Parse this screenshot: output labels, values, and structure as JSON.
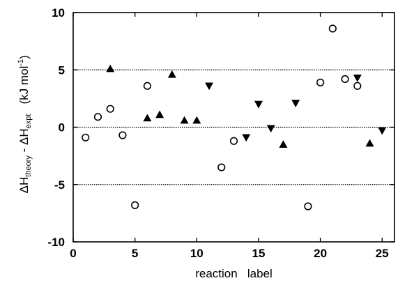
{
  "chart_data": {
    "type": "scatter",
    "xlabel": "reaction   label",
    "ylabel": {
      "delta1": "ΔH",
      "sub1": "theory",
      "minus": " - ΔH",
      "sub2": "expt",
      "unit_open": "   (kJ mol",
      "sup": "-1",
      "unit_close": ")"
    },
    "xlim": [
      0,
      26
    ],
    "ylim": [
      -10,
      10
    ],
    "x_ticks": [
      0,
      5,
      10,
      15,
      20,
      25
    ],
    "y_ticks": [
      -10,
      -5,
      0,
      5,
      10
    ],
    "reference_lines": [
      -5,
      0,
      5
    ],
    "grid": false,
    "series": [
      {
        "marker": "open-circle",
        "points": [
          [
            1,
            -0.9
          ],
          [
            2,
            0.9
          ],
          [
            3,
            1.6
          ],
          [
            4,
            -0.7
          ],
          [
            5,
            -6.8
          ],
          [
            6,
            3.6
          ],
          [
            12,
            -3.5
          ],
          [
            13,
            -1.2
          ],
          [
            19,
            -6.9
          ],
          [
            20,
            3.9
          ],
          [
            21,
            8.6
          ],
          [
            22,
            4.2
          ],
          [
            23,
            3.6
          ]
        ]
      },
      {
        "marker": "filled-triangle-up",
        "points": [
          [
            3,
            5.1
          ],
          [
            6,
            0.8
          ],
          [
            7,
            1.1
          ],
          [
            8,
            4.6
          ],
          [
            9,
            0.6
          ],
          [
            10,
            0.6
          ],
          [
            17,
            -1.5
          ],
          [
            24,
            -1.4
          ]
        ]
      },
      {
        "marker": "filled-triangle-down",
        "points": [
          [
            11,
            3.6
          ],
          [
            14,
            -0.9
          ],
          [
            15,
            2.0
          ],
          [
            16,
            -0.1
          ],
          [
            18,
            2.1
          ],
          [
            23,
            4.3
          ],
          [
            25,
            -0.3
          ]
        ]
      }
    ]
  }
}
